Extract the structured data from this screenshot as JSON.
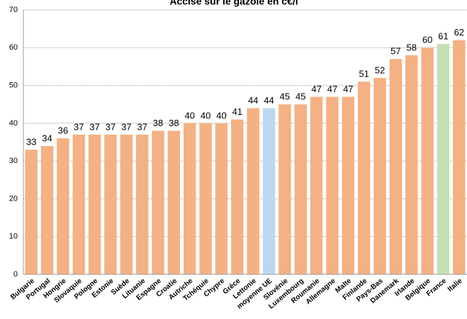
{
  "chart_data": {
    "type": "bar",
    "title": "Accise sur le gazole en c€/l",
    "categories": [
      "Bulgarie",
      "Portugal",
      "Hongrie",
      "Slovaquie",
      "Pologne",
      "Estonie",
      "Suède",
      "Lituanie",
      "Espagne",
      "Croatie",
      "Autriche",
      "Tchéquie",
      "Chypre",
      "Grèce",
      "Lettonie",
      "moyenne UE",
      "Slovénie",
      "Luxembourg",
      "Roumanie",
      "Allemagne",
      "Malte",
      "Finlande",
      "Pays-Bas",
      "Danemark",
      "Irlande",
      "Belgique",
      "France",
      "Italie"
    ],
    "values": [
      33,
      34,
      36,
      37,
      37,
      37,
      37,
      37,
      38,
      38,
      40,
      40,
      40,
      41,
      44,
      44,
      45,
      45,
      47,
      47,
      47,
      51,
      52,
      57,
      58,
      60,
      61,
      62
    ],
    "colors": [
      "#f4b183",
      "#f4b183",
      "#f4b183",
      "#f4b183",
      "#f4b183",
      "#f4b183",
      "#f4b183",
      "#f4b183",
      "#f4b183",
      "#f4b183",
      "#f4b183",
      "#f4b183",
      "#f4b183",
      "#f4b183",
      "#f4b183",
      "#bdd7ee",
      "#f4b183",
      "#f4b183",
      "#f4b183",
      "#f4b183",
      "#f4b183",
      "#f4b183",
      "#f4b183",
      "#f4b183",
      "#f4b183",
      "#f4b183",
      "#c5e0b4",
      "#f4b183"
    ],
    "ylim": [
      0,
      70
    ],
    "yticks": [
      0,
      10,
      20,
      30,
      40,
      50,
      60,
      70
    ],
    "grid": true
  }
}
